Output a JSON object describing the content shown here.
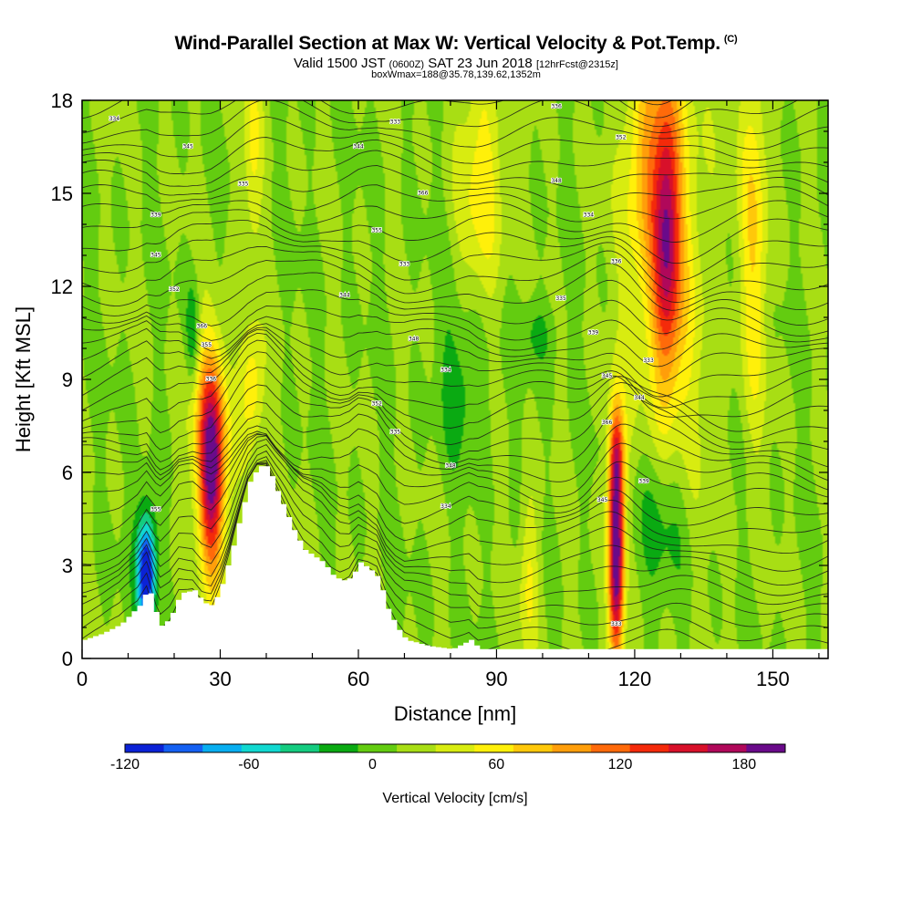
{
  "header": {
    "title": "Wind-Parallel Section at Max W: Vertical Velocity & Pot.Temp.",
    "copyright": "(C)",
    "subtitle_main": "Valid 1500 JST",
    "subtitle_utc": "(0600Z)",
    "subtitle_date": "SAT 23 Jun 2018",
    "subtitle_fcst": "[12hrFcst@2315z]",
    "subtitle_box": "boxWmax=188@35.78,139.62,1352m"
  },
  "chart_data": {
    "type": "heatmap",
    "title": "Wind-Parallel Section at Max W: Vertical Velocity & Pot.Temp.",
    "xlabel": "Distance [nm]",
    "ylabel": "Height [Kft MSL]",
    "xlim": [
      0,
      162
    ],
    "ylim": [
      0,
      18
    ],
    "x_ticks": [
      0,
      30,
      60,
      90,
      120,
      150
    ],
    "y_ticks": [
      0,
      3,
      6,
      9,
      12,
      15,
      18
    ],
    "grid": false,
    "colorbar": {
      "label": "Vertical Velocity [cm/s]",
      "placement": "bottom",
      "bounds": [
        -120,
        200
      ],
      "tick_values": [
        -120,
        -60,
        0,
        60,
        120,
        180
      ],
      "tick_labels": [
        "-120",
        "-60",
        "0",
        "60",
        "120",
        "180"
      ],
      "colors": [
        "#0b22d6",
        "#1460f2",
        "#08aef0",
        "#11d8d0",
        "#14cc80",
        "#0aaa12",
        "#63cc10",
        "#a8de14",
        "#d8ec10",
        "#fff00a",
        "#ffc80a",
        "#ff9e0a",
        "#ff6a0a",
        "#f42a0a",
        "#d8102a",
        "#b0085a",
        "#6a0a8a"
      ]
    },
    "terrain_profile": {
      "x": [
        0,
        4,
        8,
        12,
        14,
        16,
        17,
        19,
        21,
        24,
        26,
        28,
        30,
        32,
        34,
        36,
        38,
        40,
        42,
        44,
        46,
        48,
        50,
        52,
        54,
        56,
        58,
        60,
        62,
        64,
        66,
        68,
        70,
        75,
        80,
        84,
        86,
        88,
        162
      ],
      "height": [
        0.6,
        0.8,
        1.1,
        1.7,
        2.3,
        1.3,
        1.0,
        1.4,
        2.1,
        2.2,
        1.8,
        1.7,
        2.4,
        3.4,
        4.6,
        5.7,
        6.2,
        6.2,
        5.4,
        4.7,
        4.0,
        3.5,
        3.3,
        3.1,
        2.7,
        2.5,
        2.6,
        3.1,
        2.9,
        2.6,
        1.6,
        1.0,
        0.6,
        0.4,
        0.3,
        0.6,
        0.3,
        0.3,
        0.3
      ]
    },
    "velocity_features": [
      {
        "x": 28,
        "z": 5.8,
        "sx": 1.9,
        "sz": 2.4,
        "w": 145
      },
      {
        "x": 28,
        "z": 7.5,
        "sx": 3.8,
        "sz": 2.2,
        "w": 55
      },
      {
        "x": 37,
        "z": 8.8,
        "sx": 1.8,
        "sz": 1.4,
        "w": 55
      },
      {
        "x": 116,
        "z": 3.0,
        "sx": 1.2,
        "sz": 2.4,
        "w": 195
      },
      {
        "x": 116,
        "z": 6.4,
        "sx": 1.2,
        "sz": 1.4,
        "w": 100
      },
      {
        "x": 127,
        "z": 13.6,
        "sx": 2.0,
        "sz": 3.2,
        "w": 115
      },
      {
        "x": 127,
        "z": 13.0,
        "sx": 6.0,
        "sz": 6.0,
        "w": 55
      },
      {
        "x": 122,
        "z": 16.0,
        "sx": 3.0,
        "sz": 2.5,
        "w": 45
      },
      {
        "x": 146,
        "z": 14.0,
        "sx": 2.2,
        "sz": 4.5,
        "w": 55
      },
      {
        "x": 87,
        "z": 15.5,
        "sx": 3.5,
        "sz": 3.0,
        "w": 50
      },
      {
        "x": 97,
        "z": 2.5,
        "sx": 1.5,
        "sz": 2.0,
        "w": 45
      },
      {
        "x": 37,
        "z": 16.5,
        "sx": 1.5,
        "sz": 2.5,
        "w": 40
      },
      {
        "x": 14,
        "z": 2.6,
        "sx": 1.2,
        "sz": 1.0,
        "w": -110
      },
      {
        "x": 14,
        "z": 3.4,
        "sx": 1.8,
        "sz": 1.6,
        "w": -55
      },
      {
        "x": 125,
        "z": 4.3,
        "sx": 4.5,
        "sz": 2.2,
        "w": -40
      },
      {
        "x": 83,
        "z": 9.0,
        "sx": 4.0,
        "sz": 1.8,
        "w": -30
      },
      {
        "x": 24,
        "z": 10.4,
        "sx": 1.0,
        "sz": 1.2,
        "w": -45
      },
      {
        "x": 99,
        "z": 10.5,
        "sx": 3.0,
        "sz": 0.8,
        "w": -25
      }
    ],
    "isentrope_labels": [
      "334",
      "345",
      "333",
      "336",
      "352",
      "344",
      "335",
      "366",
      "348",
      "339",
      "355"
    ]
  },
  "axes": {
    "xlabel": "Distance [nm]",
    "ylabel": "Height [Kft MSL]",
    "x_tick_labels": [
      "0",
      "30",
      "60",
      "90",
      "120",
      "150"
    ],
    "y_tick_labels": [
      "0",
      "3",
      "6",
      "9",
      "12",
      "15",
      "18"
    ],
    "colorbar_label": "Vertical Velocity [cm/s]"
  }
}
